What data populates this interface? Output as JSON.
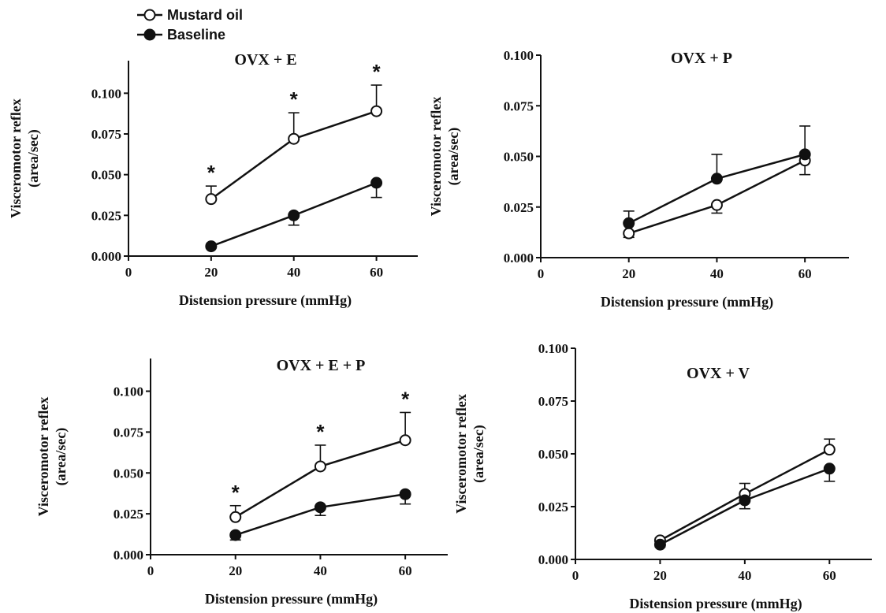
{
  "legend": {
    "items": [
      {
        "label": "Mustard oil",
        "marker": "open-circle"
      },
      {
        "label": "Baseline",
        "marker": "filled-circle"
      }
    ]
  },
  "colors": {
    "stroke": "#111111",
    "open_fill": "#ffffff",
    "filled_fill": "#111111"
  },
  "chart_data": [
    {
      "type": "line",
      "title": "OVX + E",
      "xlabel": "Distension pressure (mmHg)",
      "ylabel_line1": "Visceromotor reflex",
      "ylabel_line2": "(area/sec)",
      "xlim": [
        0,
        70
      ],
      "ylim": [
        0,
        0.12
      ],
      "x_ticks": [
        "0",
        "20",
        "40",
        "60"
      ],
      "y_ticks": [
        "0.000",
        "0.025",
        "0.050",
        "0.075",
        "0.100"
      ],
      "x": [
        20,
        40,
        60
      ],
      "significance": [
        "*",
        "*",
        "*"
      ],
      "series": [
        {
          "name": "Mustard oil",
          "values": [
            0.035,
            0.072,
            0.089
          ],
          "errors": [
            0.008,
            0.016,
            0.016
          ],
          "error_direction": "up"
        },
        {
          "name": "Baseline",
          "values": [
            0.006,
            0.025,
            0.045
          ],
          "errors": [
            0.001,
            0.006,
            0.009
          ],
          "error_direction": "down"
        }
      ]
    },
    {
      "type": "line",
      "title": "OVX + P",
      "xlabel": "Distension pressure (mmHg)",
      "ylabel_line1": "Visceromotor reflex",
      "ylabel_line2": "(area/sec)",
      "xlim": [
        0,
        70
      ],
      "ylim": [
        0,
        0.1
      ],
      "x_ticks": [
        "0",
        "20",
        "40",
        "60"
      ],
      "y_ticks": [
        "0.000",
        "0.025",
        "0.050",
        "0.075",
        "0.100"
      ],
      "x": [
        20,
        40,
        60
      ],
      "significance": [
        "",
        "",
        ""
      ],
      "series": [
        {
          "name": "Mustard oil",
          "values": [
            0.012,
            0.026,
            0.048
          ],
          "errors": [
            0.002,
            0.004,
            0.007
          ],
          "error_direction": "down"
        },
        {
          "name": "Baseline",
          "values": [
            0.017,
            0.039,
            0.051
          ],
          "errors": [
            0.006,
            0.012,
            0.014
          ],
          "error_direction": "up"
        }
      ]
    },
    {
      "type": "line",
      "title": "OVX + E + P",
      "xlabel": "Distension pressure (mmHg)",
      "ylabel_line1": "Visceromotor reflex",
      "ylabel_line2": "(area/sec)",
      "xlim": [
        0,
        70
      ],
      "ylim": [
        0,
        0.12
      ],
      "x_ticks": [
        "0",
        "20",
        "40",
        "60"
      ],
      "y_ticks": [
        "0.000",
        "0.025",
        "0.050",
        "0.075",
        "0.100"
      ],
      "x": [
        20,
        40,
        60
      ],
      "significance": [
        "*",
        "*",
        "*"
      ],
      "series": [
        {
          "name": "Mustard oil",
          "values": [
            0.023,
            0.054,
            0.07
          ],
          "errors": [
            0.007,
            0.013,
            0.017
          ],
          "error_direction": "up"
        },
        {
          "name": "Baseline",
          "values": [
            0.012,
            0.029,
            0.037
          ],
          "errors": [
            0.003,
            0.005,
            0.006
          ],
          "error_direction": "down"
        }
      ]
    },
    {
      "type": "line",
      "title": "OVX + V",
      "xlabel": "Distension pressure (mmHg)",
      "ylabel_line1": "Visceromotor reflex",
      "ylabel_line2": "(area/sec)",
      "xlim": [
        0,
        70
      ],
      "ylim": [
        0,
        0.1
      ],
      "x_ticks": [
        "0",
        "20",
        "40",
        "60"
      ],
      "y_ticks": [
        "0.000",
        "0.025",
        "0.050",
        "0.075",
        "0.100"
      ],
      "x": [
        20,
        40,
        60
      ],
      "significance": [
        "",
        "",
        ""
      ],
      "series": [
        {
          "name": "Mustard oil",
          "values": [
            0.009,
            0.031,
            0.052
          ],
          "errors": [
            0.001,
            0.005,
            0.005
          ],
          "error_direction": "up"
        },
        {
          "name": "Baseline",
          "values": [
            0.007,
            0.028,
            0.043
          ],
          "errors": [
            0.001,
            0.004,
            0.006
          ],
          "error_direction": "down"
        }
      ]
    }
  ]
}
